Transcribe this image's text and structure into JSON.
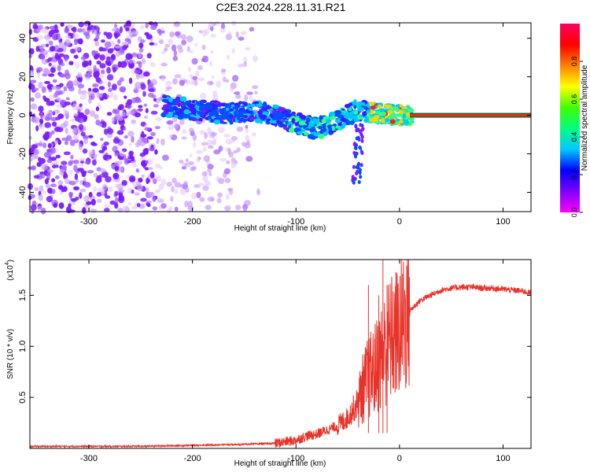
{
  "title": "C2E3.2024.228.11.31.R21",
  "chart_data": [
    {
      "type": "heatmap",
      "xlabel": "Height of straight line (km)",
      "ylabel": "Frequency (Hz)",
      "xlim": [
        -357,
        127
      ],
      "ylim": [
        -50,
        48
      ],
      "x_ticks": [
        -300,
        -200,
        -100,
        0,
        100
      ],
      "y_ticks": [
        -40,
        -20,
        0,
        20,
        40
      ],
      "colorbar": {
        "label": "Normalized spectral amplitude",
        "range": [
          0,
          1
        ],
        "ticks": [
          "0.0",
          "0.2",
          "0.4",
          "0.6",
          "0.8"
        ],
        "colormap": [
          "#ff00ff",
          "#8000ff",
          "#0000ff",
          "#00c8ff",
          "#00ff80",
          "#40ff00",
          "#ffff00",
          "#ff8000",
          "#ff0000",
          "#ff0060"
        ]
      },
      "description_points": {
        "noise_region_x": [
          -357,
          -135
        ],
        "signal_trace": [
          {
            "x": -228,
            "y": 5
          },
          {
            "x": -200,
            "y": 3
          },
          {
            "x": -170,
            "y": 1
          },
          {
            "x": -140,
            "y": 2
          },
          {
            "x": -120,
            "y": 0
          },
          {
            "x": -100,
            "y": -4
          },
          {
            "x": -80,
            "y": -7
          },
          {
            "x": -60,
            "y": -3
          },
          {
            "x": -40,
            "y": 3
          },
          {
            "x": -20,
            "y": 1
          },
          {
            "x": 0,
            "y": 0
          },
          {
            "x": 127,
            "y": 0
          }
        ],
        "steady_carrier_start_x": 10
      }
    },
    {
      "type": "line",
      "xlabel": "Height of straight line (km)",
      "ylabel": "SNR (10 * v/v)",
      "y_multiplier": "(x10",
      "y_multiplier_exp": "4",
      "xlim": [
        -357,
        127
      ],
      "ylim": [
        0,
        1.85
      ],
      "x_ticks": [
        -300,
        -200,
        -100,
        0,
        100
      ],
      "y_ticks": [
        "0.5",
        "1.0",
        "1.5"
      ],
      "line_color": "#e8332a",
      "series": [
        {
          "x": [
            -357,
            -300,
            -250,
            -200,
            -150,
            -120,
            -100,
            -90,
            -80,
            -70,
            -60,
            -50,
            -45,
            -40,
            -35,
            -30,
            -25,
            -20,
            -15,
            -10,
            -5,
            0,
            5,
            10,
            20,
            30,
            40,
            50,
            60,
            70,
            80,
            90,
            100,
            110,
            120,
            127
          ],
          "values": [
            0.02,
            0.02,
            0.02,
            0.03,
            0.04,
            0.05,
            0.08,
            0.12,
            0.14,
            0.18,
            0.22,
            0.3,
            0.38,
            0.45,
            0.6,
            0.7,
            0.75,
            0.85,
            0.95,
            1.05,
            1.1,
            1.15,
            1.25,
            1.35,
            1.45,
            1.5,
            1.55,
            1.57,
            1.58,
            1.58,
            1.57,
            1.57,
            1.56,
            1.55,
            1.54,
            1.52
          ]
        }
      ],
      "spike_peaks": [
        {
          "x": -30,
          "y": 1.6
        },
        {
          "x": -20,
          "y": 1.5
        },
        {
          "x": -16,
          "y": 1.85
        },
        {
          "x": -12,
          "y": 1.6
        }
      ]
    }
  ]
}
